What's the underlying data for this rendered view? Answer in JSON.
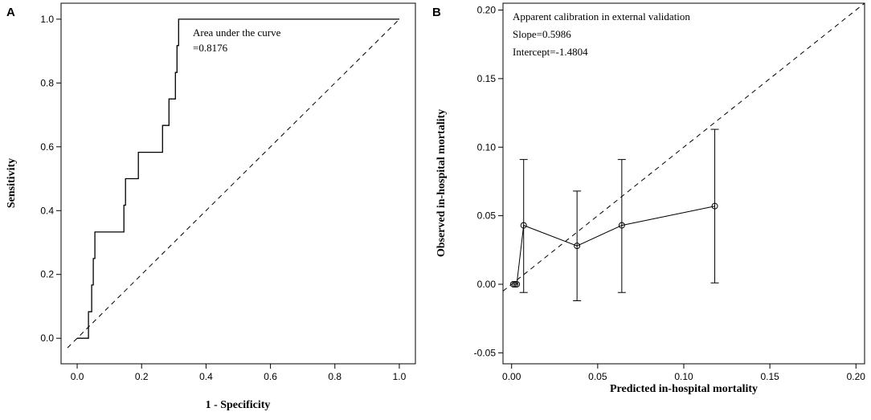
{
  "chart_data": [
    {
      "panel_label": "A",
      "type": "line",
      "title": "",
      "xlabel": "1 - Specificity",
      "ylabel": "Sensitivity",
      "xlim": [
        -0.05,
        1.05
      ],
      "ylim": [
        -0.08,
        1.05
      ],
      "xticks": [
        0.0,
        0.2,
        0.4,
        0.6,
        0.8,
        1.0
      ],
      "yticks": [
        0.0,
        0.2,
        0.4,
        0.6,
        0.8,
        1.0
      ],
      "xtick_labels": [
        "0.0",
        "0.2",
        "0.4",
        "0.6",
        "0.8",
        "1.0"
      ],
      "ytick_labels": [
        "0.0",
        "0.2",
        "0.4",
        "0.6",
        "0.8",
        "1.0"
      ],
      "annotation": [
        "Area under the curve",
        "=0.8176"
      ],
      "series": [
        {
          "name": "ROC curve",
          "style": "step",
          "x": [
            0,
            0.035,
            0.035,
            0.045,
            0.045,
            0.05,
            0.05,
            0.055,
            0.055,
            0.06,
            0.06,
            0.145,
            0.145,
            0.15,
            0.15,
            0.19,
            0.19,
            0.265,
            0.265,
            0.285,
            0.285,
            0.305,
            0.305,
            0.31,
            0.31,
            0.315,
            0.315,
            0.325,
            0.325,
            1.0
          ],
          "y": [
            0,
            0,
            0.083,
            0.083,
            0.167,
            0.167,
            0.25,
            0.25,
            0.333,
            0.333,
            0.333,
            0.333,
            0.417,
            0.417,
            0.5,
            0.5,
            0.583,
            0.583,
            0.667,
            0.667,
            0.75,
            0.75,
            0.833,
            0.833,
            0.917,
            0.917,
            1.0,
            1.0,
            1.0,
            1.0
          ]
        },
        {
          "name": "reference",
          "style": "dashed",
          "x": [
            -0.03,
            1.0
          ],
          "y": [
            -0.03,
            1.0
          ]
        }
      ]
    },
    {
      "panel_label": "B",
      "type": "line",
      "title": "",
      "xlabel": "Predicted in-hospital mortality",
      "ylabel": "Observed in-hospital mortality",
      "xlim": [
        -0.005,
        0.205
      ],
      "ylim": [
        -0.058,
        0.205
      ],
      "xticks": [
        0.0,
        0.05,
        0.1,
        0.15,
        0.2
      ],
      "yticks": [
        -0.05,
        0.0,
        0.05,
        0.1,
        0.15,
        0.2
      ],
      "xtick_labels": [
        "0.00",
        "0.05",
        "0.10",
        "0.15",
        "0.20"
      ],
      "ytick_labels": [
        "-0.05",
        "0.00",
        "0.05",
        "0.10",
        "0.15",
        "0.20"
      ],
      "annotation": [
        "Apparent calibration in external validation",
        "Slope=0.5986",
        "Intercept=-1.4804"
      ],
      "series": [
        {
          "name": "Observed vs predicted",
          "style": "line-points",
          "x": [
            0.001,
            0.002,
            0.003,
            0.007,
            0.038,
            0.064,
            0.118
          ],
          "y": [
            0.0,
            0.0,
            0.0,
            0.043,
            0.028,
            0.043,
            0.057
          ],
          "ci_low": [
            null,
            null,
            null,
            -0.006,
            -0.012,
            -0.006,
            0.001
          ],
          "ci_high": [
            null,
            null,
            null,
            0.091,
            0.068,
            0.091,
            0.113
          ]
        },
        {
          "name": "ideal",
          "style": "dashed",
          "x": [
            -0.005,
            0.205
          ],
          "y": [
            -0.005,
            0.205
          ]
        }
      ]
    }
  ]
}
